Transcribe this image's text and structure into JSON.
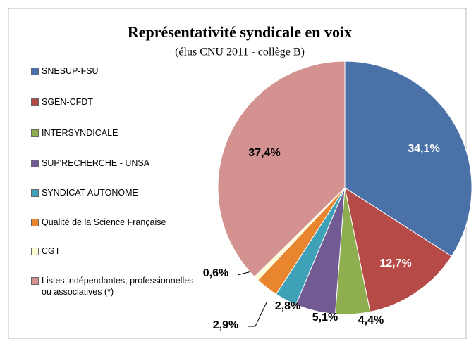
{
  "chart_data": {
    "type": "pie",
    "title": "Représentativité syndicale en voix",
    "subtitle": "(élus CNU 2011 - collège B)",
    "categories": [
      "SNESUP-FSU",
      "SGEN-CFDT",
      "INTERSYNDICALE",
      "SUP'RECHERCHE - UNSA",
      "SYNDICAT AUTONOME",
      "Qualité de la Science Française",
      "CGT",
      "Listes indépendantes, professionnelles ou associatives (*)"
    ],
    "values": [
      34.1,
      12.7,
      4.4,
      5.1,
      2.8,
      2.9,
      0.6,
      37.4
    ],
    "value_labels": [
      "34,1%",
      "12,7%",
      "4,4%",
      "5,1%",
      "2,8%",
      "2,9%",
      "0,6%",
      "37,4%"
    ],
    "colors": [
      "#4a72a8",
      "#b54a47",
      "#8fae4f",
      "#725a92",
      "#3fa1b8",
      "#e8862f",
      "#fdfbd0",
      "#d39290"
    ],
    "legend": "left"
  }
}
